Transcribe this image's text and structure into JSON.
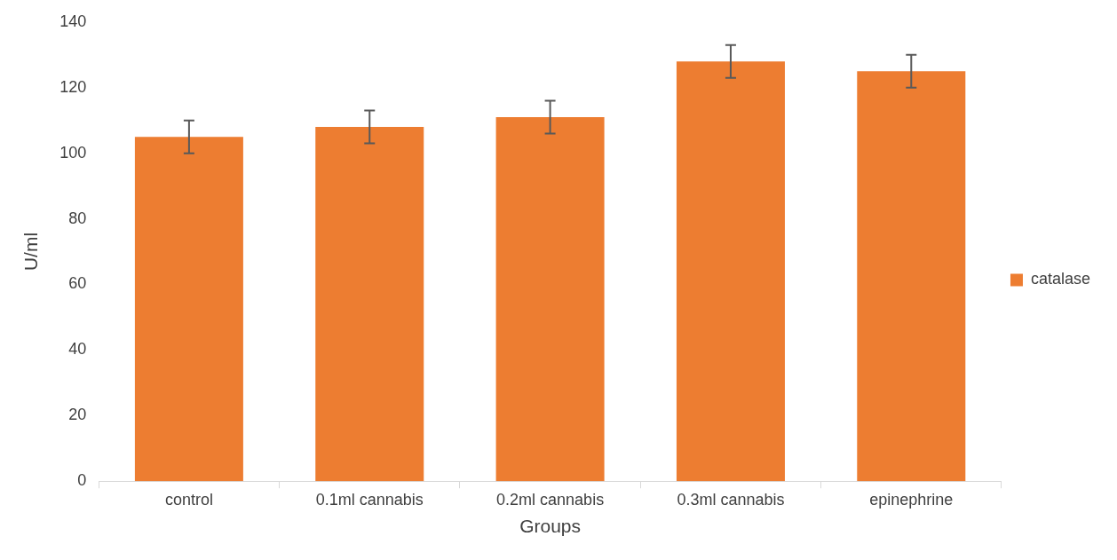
{
  "chart_data": {
    "type": "bar",
    "xlabel": "Groups",
    "ylabel": "U/ml",
    "categories": [
      "control",
      "0.1ml cannabis",
      "0.2ml cannabis",
      "0.3ml cannabis",
      "epinephrine"
    ],
    "series": [
      {
        "name": "catalase",
        "color": "#ed7d31",
        "values": [
          105,
          108,
          111,
          128,
          125
        ],
        "errors": [
          5,
          5,
          5,
          5,
          5
        ]
      }
    ],
    "ylim": [
      0,
      140
    ],
    "yticks": [
      0,
      20,
      40,
      60,
      80,
      100,
      120,
      140
    ],
    "grid": false,
    "legend": "right"
  }
}
